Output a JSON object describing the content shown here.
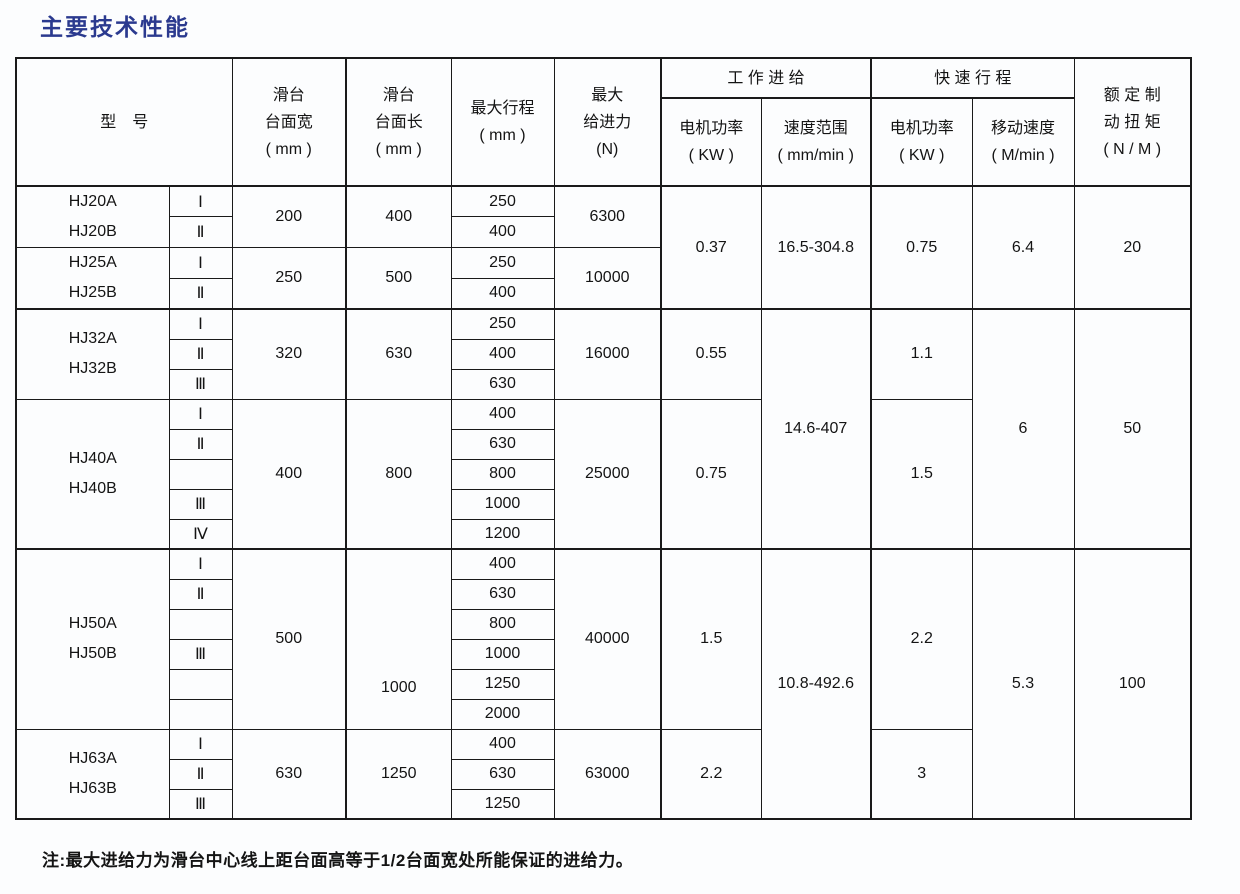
{
  "page": {
    "title": "主要技术性能",
    "title_color": "#2b3a8f",
    "footnote": "注:最大进给力为滑台中心线上距台面高等于1/2台面宽处所能保证的进给力。"
  },
  "table": {
    "header": {
      "model": "型　号",
      "width": [
        "滑台",
        "台面宽",
        "( mm )"
      ],
      "length": [
        "滑台",
        "台面长",
        "( mm )"
      ],
      "stroke": [
        "最大行程",
        "( mm )"
      ],
      "force": [
        "最大",
        "给进力",
        "(N)"
      ],
      "work_group": "工 作 进 给",
      "rapid_group": "快 速 行 程",
      "work_kw": [
        "电机功率",
        "( KW )"
      ],
      "speed_range": [
        "速度范围",
        "( mm/min )"
      ],
      "rapid_kw": [
        "电机功率",
        "( KW )"
      ],
      "move_speed": [
        "移动速度",
        "( M/min )"
      ],
      "torque": [
        "额 定 制",
        "动 扭 矩",
        "( N / M )"
      ]
    },
    "body": [
      {
        "cells": [
          {
            "c": "model",
            "t": "HJ20A\nHJ20B",
            "rs": 2
          },
          {
            "c": "variant",
            "t": "Ⅰ"
          },
          {
            "c": "width",
            "t": "200",
            "rs": 2
          },
          {
            "c": "length",
            "t": "400",
            "rs": 2
          },
          {
            "c": "stroke",
            "t": "250"
          },
          {
            "c": "force",
            "t": "6300",
            "rs": 2
          },
          {
            "c": "work_kw",
            "t": "0.37",
            "rs": 4
          },
          {
            "c": "speed_range",
            "t": "16.5-304.8",
            "rs": 4
          },
          {
            "c": "rapid_kw",
            "t": "0.75",
            "rs": 4
          },
          {
            "c": "move_speed",
            "t": "6.4",
            "rs": 4
          },
          {
            "c": "torque",
            "t": "20",
            "rs": 4
          }
        ]
      },
      {
        "cells": [
          {
            "c": "variant",
            "t": "Ⅱ"
          },
          {
            "c": "stroke",
            "t": "400"
          }
        ]
      },
      {
        "cells": [
          {
            "c": "model",
            "t": "HJ25A\nHJ25B",
            "rs": 2
          },
          {
            "c": "variant",
            "t": "Ⅰ"
          },
          {
            "c": "width",
            "t": "250",
            "rs": 2
          },
          {
            "c": "length",
            "t": "500",
            "rs": 2
          },
          {
            "c": "stroke",
            "t": "250"
          },
          {
            "c": "force",
            "t": "10000",
            "rs": 2
          }
        ]
      },
      {
        "cells": [
          {
            "c": "variant",
            "t": "Ⅱ"
          },
          {
            "c": "stroke",
            "t": "400"
          }
        ]
      },
      {
        "sep": true,
        "cells": [
          {
            "c": "model",
            "t": "HJ32A\nHJ32B",
            "rs": 3
          },
          {
            "c": "variant",
            "t": "Ⅰ"
          },
          {
            "c": "width",
            "t": "320",
            "rs": 3
          },
          {
            "c": "length",
            "t": "630",
            "rs": 3
          },
          {
            "c": "stroke",
            "t": "250"
          },
          {
            "c": "force",
            "t": "16000",
            "rs": 3
          },
          {
            "c": "work_kw",
            "t": "0.55",
            "rs": 3
          },
          {
            "c": "speed_range",
            "t": "14.6-407",
            "rs": 8
          },
          {
            "c": "rapid_kw",
            "t": "1.1",
            "rs": 3
          },
          {
            "c": "move_speed",
            "t": "6",
            "rs": 8
          },
          {
            "c": "torque",
            "t": "50",
            "rs": 8
          }
        ]
      },
      {
        "cells": [
          {
            "c": "variant",
            "t": "Ⅱ"
          },
          {
            "c": "stroke",
            "t": "400"
          }
        ]
      },
      {
        "cells": [
          {
            "c": "variant",
            "t": "Ⅲ"
          },
          {
            "c": "stroke",
            "t": "630"
          }
        ]
      },
      {
        "cells": [
          {
            "c": "model",
            "t": "HJ40A\nHJ40B",
            "rs": 5
          },
          {
            "c": "variant",
            "t": "Ⅰ"
          },
          {
            "c": "width",
            "t": "400",
            "rs": 5
          },
          {
            "c": "length",
            "t": "800",
            "rs": 5
          },
          {
            "c": "stroke",
            "t": "400"
          },
          {
            "c": "force",
            "t": "25000",
            "rs": 5
          },
          {
            "c": "work_kw",
            "t": "0.75",
            "rs": 5
          },
          {
            "c": "rapid_kw",
            "t": "1.5",
            "rs": 5
          }
        ]
      },
      {
        "cells": [
          {
            "c": "variant",
            "t": "Ⅱ"
          },
          {
            "c": "stroke",
            "t": "630"
          }
        ]
      },
      {
        "cells": [
          {
            "c": "variant",
            "t": ""
          },
          {
            "c": "stroke",
            "t": "800"
          }
        ]
      },
      {
        "cells": [
          {
            "c": "variant",
            "t": "Ⅲ"
          },
          {
            "c": "stroke",
            "t": "1000"
          }
        ]
      },
      {
        "cells": [
          {
            "c": "variant",
            "t": "Ⅳ"
          },
          {
            "c": "stroke",
            "t": "1200"
          }
        ]
      },
      {
        "sep": true,
        "cells": [
          {
            "c": "model",
            "t": "HJ50A\nHJ50B",
            "rs": 6
          },
          {
            "c": "variant",
            "t": "Ⅰ"
          },
          {
            "c": "width",
            "t": "500",
            "rs": 6
          },
          {
            "c": "length",
            "t": "1000",
            "rs": 6,
            "cls": "low"
          },
          {
            "c": "stroke",
            "t": "400"
          },
          {
            "c": "force",
            "t": "40000",
            "rs": 6
          },
          {
            "c": "work_kw",
            "t": "1.5",
            "rs": 6
          },
          {
            "c": "speed_range",
            "t": "10.8-492.6",
            "rs": 9
          },
          {
            "c": "rapid_kw",
            "t": "2.2",
            "rs": 6
          },
          {
            "c": "move_speed",
            "t": "5.3",
            "rs": 9
          },
          {
            "c": "torque",
            "t": "100",
            "rs": 9
          }
        ]
      },
      {
        "cells": [
          {
            "c": "variant",
            "t": "Ⅱ"
          },
          {
            "c": "stroke",
            "t": "630"
          }
        ]
      },
      {
        "cells": [
          {
            "c": "variant",
            "t": ""
          },
          {
            "c": "stroke",
            "t": "800"
          }
        ]
      },
      {
        "cells": [
          {
            "c": "variant",
            "t": "Ⅲ"
          },
          {
            "c": "stroke",
            "t": "1000"
          }
        ]
      },
      {
        "cells": [
          {
            "c": "variant",
            "t": ""
          },
          {
            "c": "stroke",
            "t": "1250"
          }
        ]
      },
      {
        "cells": [
          {
            "c": "variant",
            "t": ""
          },
          {
            "c": "stroke",
            "t": "2000"
          }
        ]
      },
      {
        "cells": [
          {
            "c": "model",
            "t": "HJ63A\nHJ63B",
            "rs": 3
          },
          {
            "c": "variant",
            "t": "Ⅰ"
          },
          {
            "c": "width",
            "t": "630",
            "rs": 3
          },
          {
            "c": "length",
            "t": "1250",
            "rs": 3
          },
          {
            "c": "stroke",
            "t": "400"
          },
          {
            "c": "force",
            "t": "63000",
            "rs": 3
          },
          {
            "c": "work_kw",
            "t": "2.2",
            "rs": 3
          },
          {
            "c": "rapid_kw",
            "t": "3",
            "rs": 3
          }
        ]
      },
      {
        "cells": [
          {
            "c": "variant",
            "t": "Ⅱ"
          },
          {
            "c": "stroke",
            "t": "630"
          }
        ]
      },
      {
        "cells": [
          {
            "c": "variant",
            "t": "Ⅲ"
          },
          {
            "c": "stroke",
            "t": "1250"
          }
        ]
      }
    ]
  }
}
